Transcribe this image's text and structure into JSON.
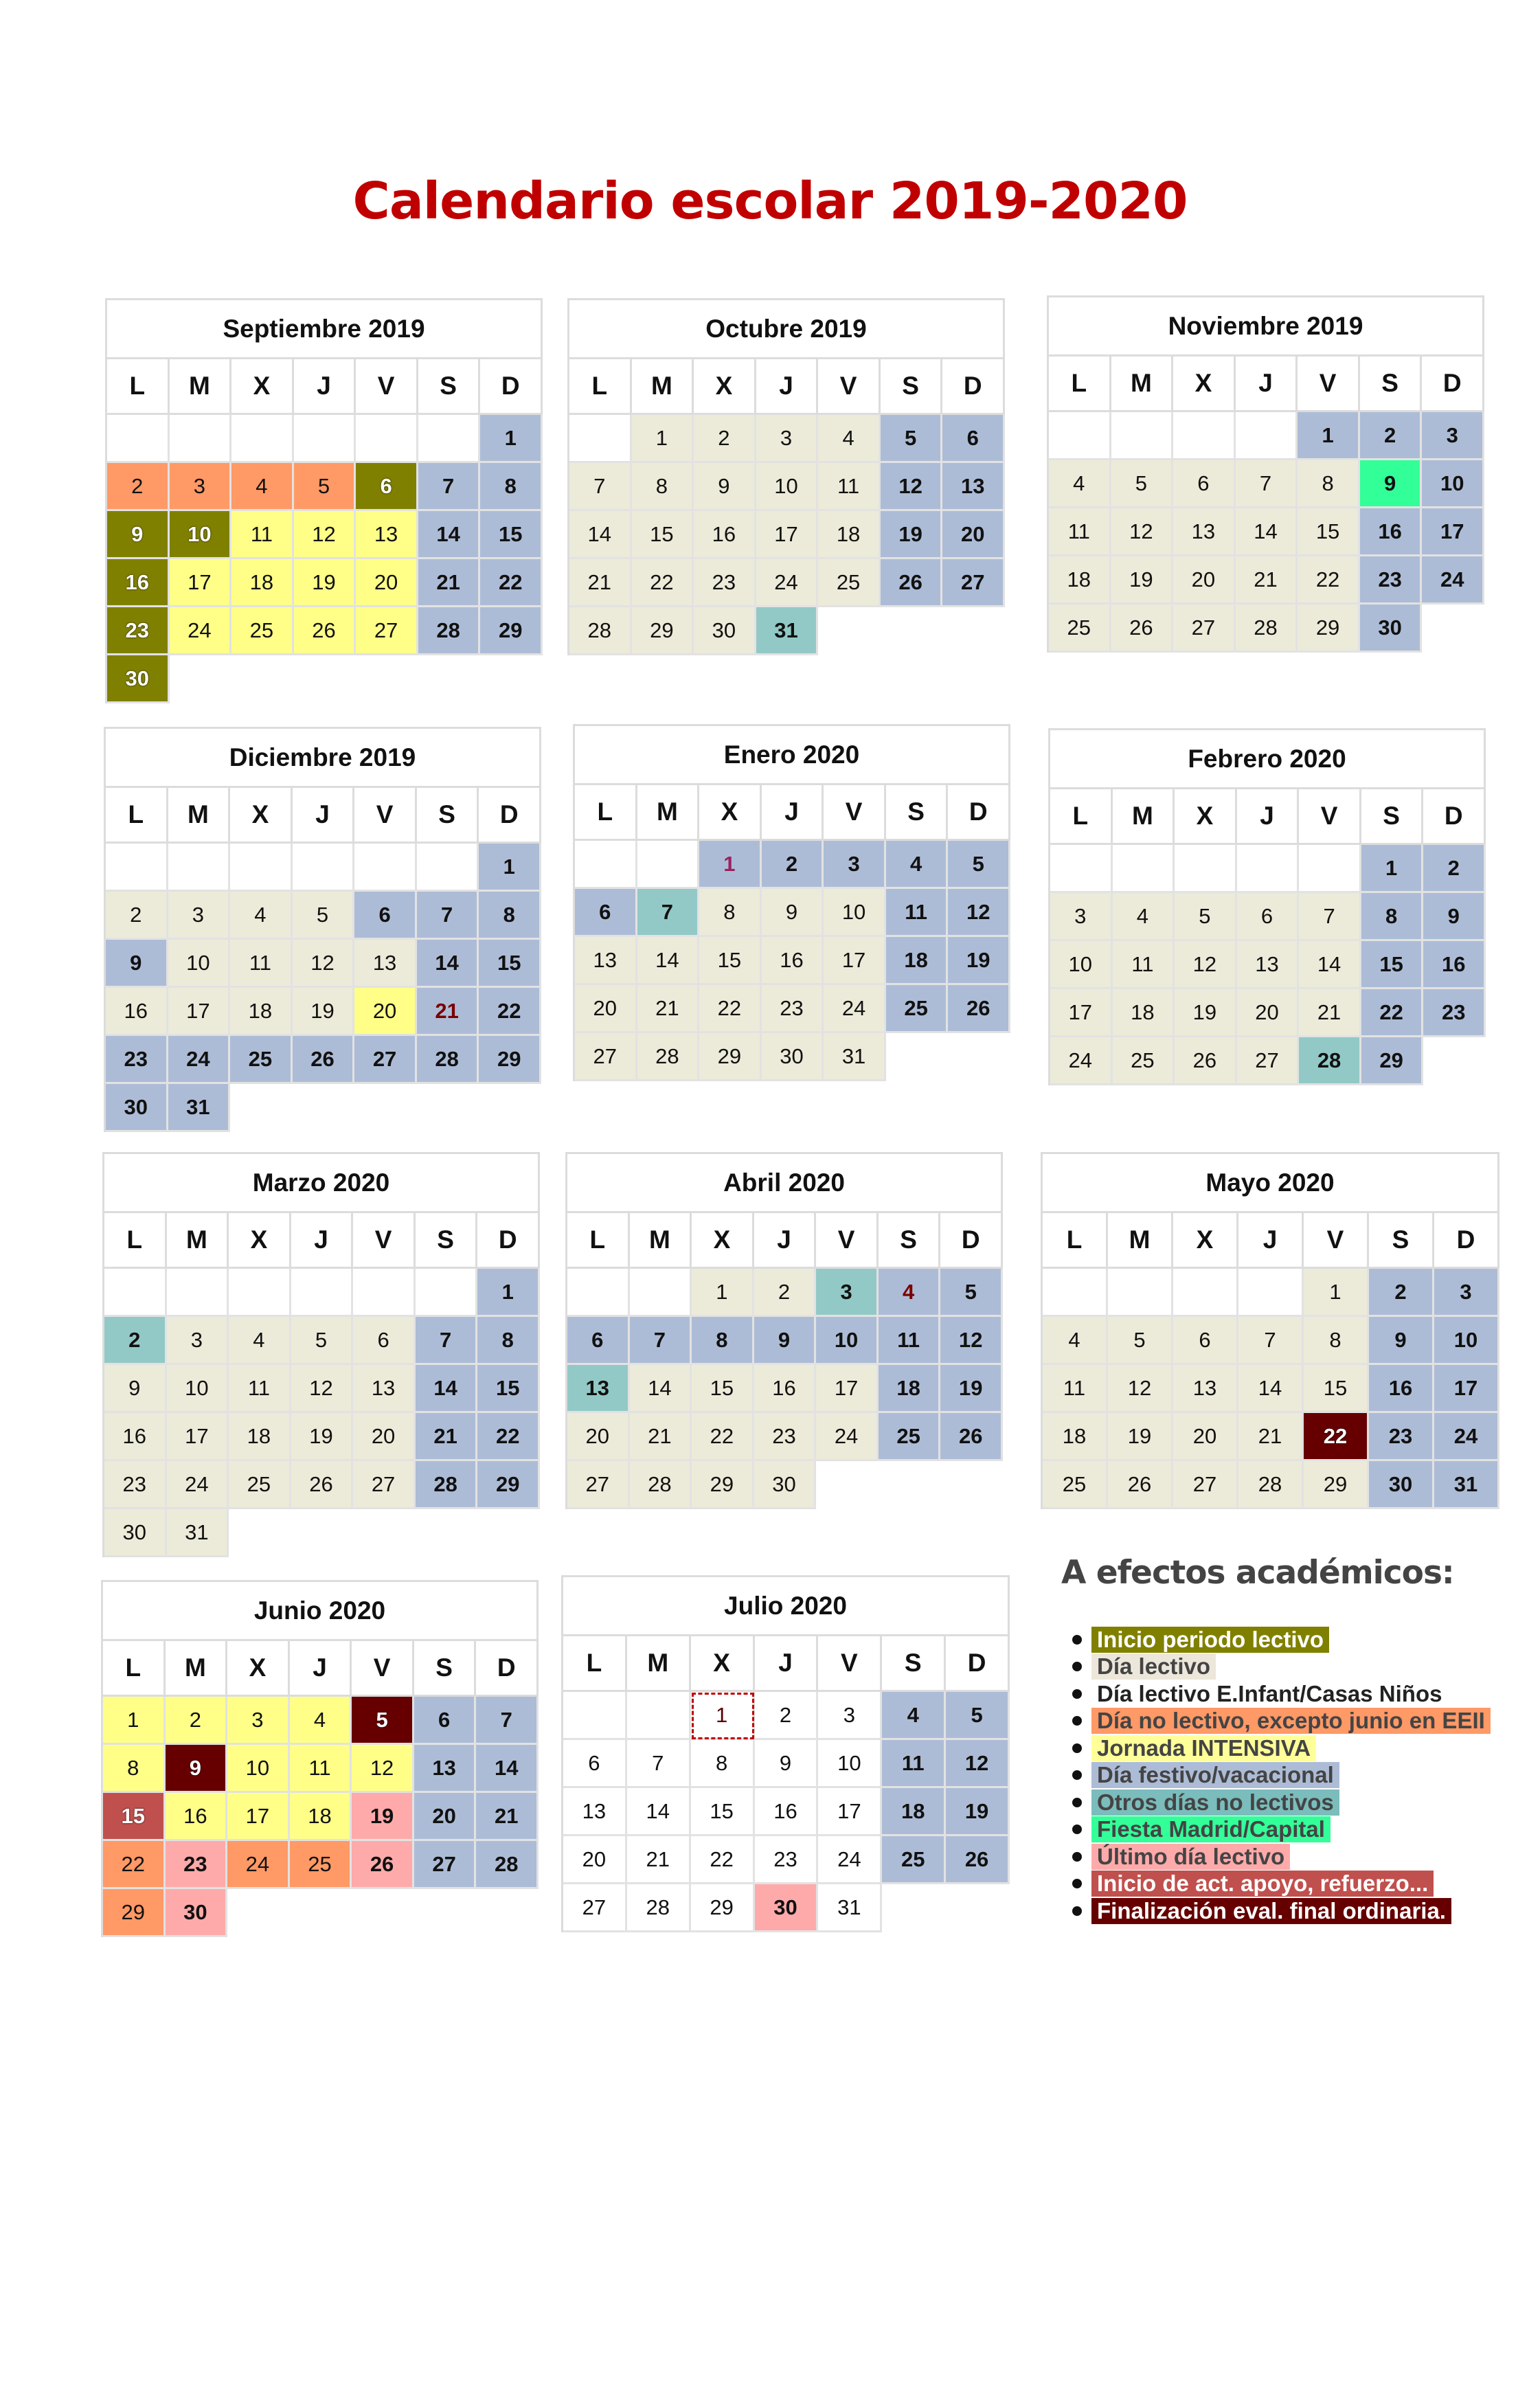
{
  "title": "Calendario escolar 2019-2020",
  "weekdays": [
    "L",
    "M",
    "X",
    "J",
    "V",
    "S",
    "D"
  ],
  "day_types": {
    "i": {
      "label": "Inicio periodo lectivo",
      "bg": "#808000",
      "fg": "#ffffff"
    },
    "l": {
      "label": "Día lectivo",
      "bg": "#ECEBD9",
      "fg": "#111111"
    },
    "w": {
      "label": "Día lectivo E.Infant/Casas Niños",
      "bg": "#ffffff",
      "fg": "#111111"
    },
    "n": {
      "label": "Día no lectivo, excepto junio en EEII",
      "bg": "#FF9966",
      "fg": "#111111"
    },
    "j": {
      "label": "Jornada INTENSIVA",
      "bg": "#FFFF88",
      "fg": "#111111"
    },
    "f": {
      "label": "Día festivo/vacacional",
      "bg": "#ADBCD6",
      "fg": "#111111"
    },
    "o": {
      "label": "Otros días no lectivos",
      "bg": "#92C9C6",
      "fg": "#111111"
    },
    "m": {
      "label": "Fiesta Madrid/Capital",
      "bg": "#33FF99",
      "fg": "#111111"
    },
    "u": {
      "label": "Último día lectivo",
      "bg": "#FFAAAA",
      "fg": "#111111"
    },
    "a": {
      "label": "Inicio de act. apoyo, refuerzo...",
      "bg": "#C0504D",
      "fg": "#ffffff"
    },
    "e": {
      "label": "Finalización eval. final ordinaria.",
      "bg": "#660000",
      "fg": "#ffffff"
    }
  },
  "legend": {
    "title": "A efectos académicos:",
    "items": [
      {
        "text": " Inicio periodo lectivo ",
        "bg": "#808000",
        "fg": "#ffffff"
      },
      {
        "text": "Día lectivo",
        "bg": "#ECE7DA",
        "fg": "#444444"
      },
      {
        "text": "Día lectivo E.Infant/Casas Niños",
        "bg": "transparent",
        "fg": "#222222"
      },
      {
        "text": "Día no lectivo, excepto junio en EEII",
        "bg": "#FF9966",
        "fg": "#444444"
      },
      {
        "text": "Jornada INTENSIVA",
        "bg": "#FFFF99",
        "fg": "#444444"
      },
      {
        "text": "Día festivo/vacacional",
        "bg": "#ADBCD6",
        "fg": "#444444"
      },
      {
        "text": "Otros días no lectivos",
        "bg": "#7BBCBC",
        "fg": "#444444"
      },
      {
        "text": "Fiesta Madrid/Capital",
        "bg": "#33FF99",
        "fg": "#444444"
      },
      {
        "text": "Último día lectivo",
        "bg": "#FFAAAA",
        "fg": "#444444"
      },
      {
        "text": "Inicio de act. apoyo, refuerzo...",
        "bg": "#C0504D",
        "fg": "#ffffff"
      },
      {
        "text": "Finalización eval. final ordinaria.",
        "bg": "#660000",
        "fg": "#ffffff"
      }
    ]
  },
  "months": [
    {
      "title": "Septiembre 2019",
      "year": 2019,
      "month": 9,
      "days": [
        "f",
        "n",
        "n",
        "n",
        "n",
        "i",
        "f",
        "f",
        "i",
        "i",
        "j",
        "j",
        "j",
        "f",
        "f",
        "i",
        "j",
        "j",
        "j",
        "j",
        "f",
        "f",
        "i",
        "j",
        "j",
        "j",
        "j",
        "f",
        "f",
        "i"
      ]
    },
    {
      "title": "Octubre 2019",
      "year": 2019,
      "month": 10,
      "days": [
        "l",
        "l",
        "l",
        "l",
        "f",
        "f",
        "l",
        "l",
        "l",
        "l",
        "l",
        "f",
        "f",
        "l",
        "l",
        "l",
        "l",
        "l",
        "f",
        "f",
        "l",
        "l",
        "l",
        "l",
        "l",
        "f",
        "f",
        "l",
        "l",
        "l",
        "o"
      ]
    },
    {
      "title": "Noviembre 2019",
      "year": 2019,
      "month": 11,
      "days": [
        "f",
        "f",
        "f",
        "l",
        "l",
        "l",
        "l",
        "l",
        "m",
        "f",
        "l",
        "l",
        "l",
        "l",
        "l",
        "f",
        "f",
        "l",
        "l",
        "l",
        "l",
        "l",
        "f",
        "f",
        "l",
        "l",
        "l",
        "l",
        "l",
        "f"
      ]
    },
    {
      "title": "Diciembre 2019",
      "year": 2019,
      "month": 12,
      "days": [
        "f",
        "l",
        "l",
        "l",
        "l",
        "f",
        "f",
        "f",
        "f",
        "l",
        "l",
        "l",
        "l",
        "f",
        "f",
        "l",
        "l",
        "l",
        "l",
        "j",
        "f",
        "f",
        "f",
        "f",
        "f",
        "f",
        "f",
        "f",
        "f",
        "f",
        "f"
      ],
      "special": [
        {
          "day": 21,
          "color": "#7A0000"
        }
      ]
    },
    {
      "title": "Enero 2020",
      "year": 2020,
      "month": 1,
      "days": [
        "f",
        "f",
        "f",
        "f",
        "f",
        "f",
        "o",
        "l",
        "l",
        "l",
        "f",
        "f",
        "l",
        "l",
        "l",
        "l",
        "l",
        "f",
        "f",
        "l",
        "l",
        "l",
        "l",
        "l",
        "f",
        "f",
        "l",
        "l",
        "l",
        "l",
        "l"
      ],
      "special": [
        {
          "day": 1,
          "color": "#99235F"
        }
      ]
    },
    {
      "title": "Febrero 2020",
      "year": 2020,
      "month": 2,
      "days": [
        "f",
        "f",
        "l",
        "l",
        "l",
        "l",
        "l",
        "f",
        "f",
        "l",
        "l",
        "l",
        "l",
        "l",
        "f",
        "f",
        "l",
        "l",
        "l",
        "l",
        "l",
        "f",
        "f",
        "l",
        "l",
        "l",
        "l",
        "o",
        "f"
      ]
    },
    {
      "title": "Marzo 2020",
      "year": 2020,
      "month": 3,
      "days": [
        "f",
        "o",
        "l",
        "l",
        "l",
        "l",
        "f",
        "f",
        "l",
        "l",
        "l",
        "l",
        "l",
        "f",
        "f",
        "l",
        "l",
        "l",
        "l",
        "l",
        "f",
        "f",
        "l",
        "l",
        "l",
        "l",
        "l",
        "f",
        "f",
        "l",
        "l"
      ]
    },
    {
      "title": "Abril 2020",
      "year": 2020,
      "month": 4,
      "days": [
        "l",
        "l",
        "o",
        "f",
        "f",
        "f",
        "f",
        "f",
        "f",
        "f",
        "f",
        "f",
        "o",
        "l",
        "l",
        "l",
        "l",
        "f",
        "f",
        "l",
        "l",
        "l",
        "l",
        "l",
        "f",
        "f",
        "l",
        "l",
        "l",
        "l"
      ],
      "special": [
        {
          "day": 4,
          "color": "#7A0000"
        }
      ]
    },
    {
      "title": "Mayo 2020",
      "year": 2020,
      "month": 5,
      "days": [
        "l",
        "f",
        "f",
        "l",
        "l",
        "l",
        "l",
        "l",
        "f",
        "f",
        "l",
        "l",
        "l",
        "l",
        "l",
        "f",
        "f",
        "l",
        "l",
        "l",
        "l",
        "e",
        "f",
        "f",
        "l",
        "l",
        "l",
        "l",
        "l",
        "f",
        "f"
      ]
    },
    {
      "title": "Junio 2020",
      "year": 2020,
      "month": 6,
      "days": [
        "j",
        "j",
        "j",
        "j",
        "e",
        "f",
        "f",
        "j",
        "e",
        "j",
        "j",
        "j",
        "f",
        "f",
        "a",
        "j",
        "j",
        "j",
        "u",
        "f",
        "f",
        "n",
        "u",
        "n",
        "n",
        "u",
        "f",
        "f",
        "n",
        "u"
      ]
    },
    {
      "title": "Julio 2020",
      "year": 2020,
      "month": 7,
      "days": [
        "w",
        "w",
        "w",
        "f",
        "f",
        "w",
        "w",
        "w",
        "w",
        "w",
        "f",
        "f",
        "w",
        "w",
        "w",
        "w",
        "w",
        "f",
        "f",
        "w",
        "w",
        "w",
        "w",
        "w",
        "f",
        "f",
        "w",
        "w",
        "w",
        "u",
        "w"
      ],
      "special": [
        {
          "day": 1,
          "color": "#5A0000",
          "outline": "#C00000"
        }
      ]
    }
  ]
}
